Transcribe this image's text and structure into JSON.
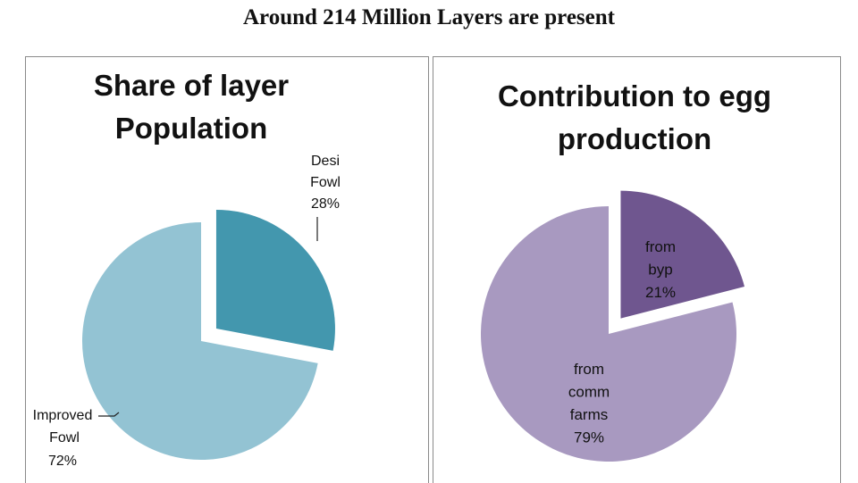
{
  "page": {
    "title": "Around 214 Million Layers are present"
  },
  "chart_data": [
    {
      "type": "pie",
      "title": "Share of layer Population",
      "exploded": true,
      "slices": [
        {
          "label": "Desi Fowl",
          "value": 28,
          "value_label": "28%",
          "color": "#4397ae"
        },
        {
          "label": "Improved Fowl",
          "value": 72,
          "value_label": "72%",
          "color": "#93c3d3"
        }
      ]
    },
    {
      "type": "pie",
      "title": "Contribution to egg production",
      "exploded": true,
      "slices": [
        {
          "label": "from byp",
          "value": 21,
          "value_label": "21%",
          "color": "#6f568f"
        },
        {
          "label": "from comm farms",
          "value": 79,
          "value_label": "79%",
          "color": "#a899c0"
        }
      ]
    }
  ]
}
